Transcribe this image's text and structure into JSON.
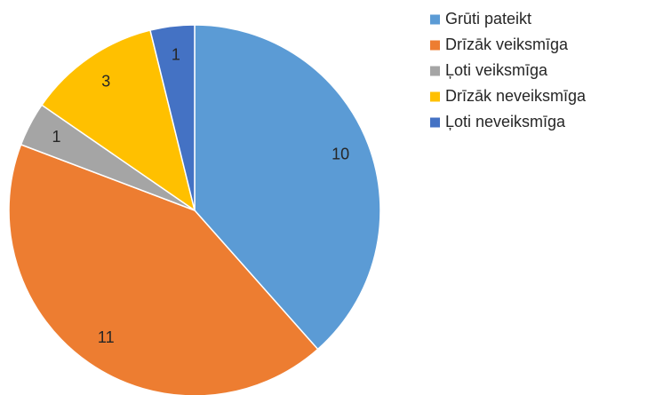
{
  "chart_data": {
    "type": "pie",
    "categories": [
      "Grūti pateikt",
      "Drīzāk veiksmīga",
      "Ļoti veiksmīga",
      "Drīzāk neveiksmīga",
      "Ļoti neveiksmīga"
    ],
    "values": [
      10,
      11,
      1,
      3,
      1
    ],
    "colors": [
      "#5b9bd5",
      "#ed7d31",
      "#a5a5a5",
      "#ffc000",
      "#4472c4"
    ],
    "legend": "right"
  }
}
